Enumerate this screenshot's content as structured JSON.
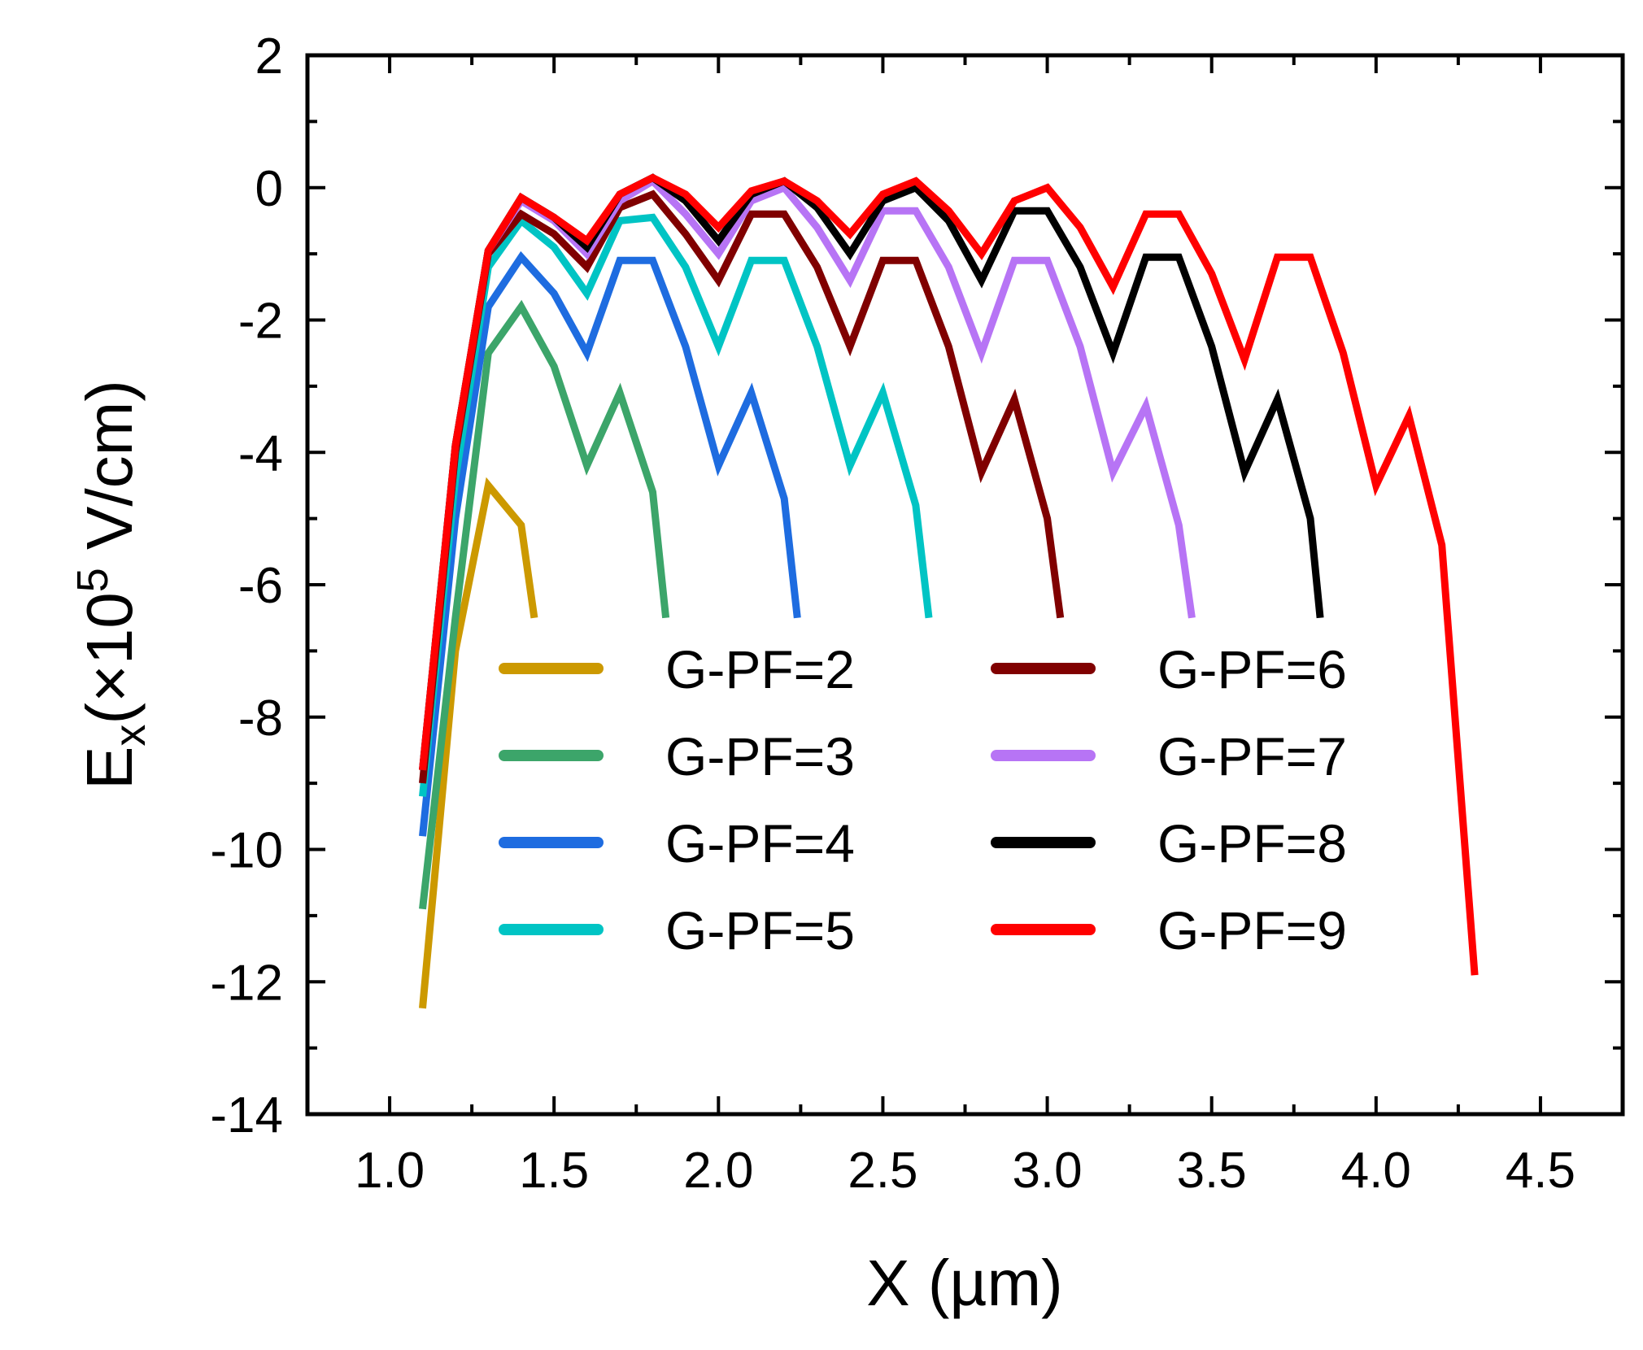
{
  "chart_data": {
    "type": "line",
    "title": "",
    "xlabel": "X (µm)",
    "ylabel": {
      "base": "E",
      "subscript": "x",
      "prefix": "(×10",
      "superscript": "5",
      "suffix": " V/cm)"
    },
    "xlim": [
      0.75,
      4.75
    ],
    "ylim": [
      -14,
      2
    ],
    "xticks": [
      1.0,
      1.5,
      2.0,
      2.5,
      3.0,
      3.5,
      4.0,
      4.5
    ],
    "xtick_labels": [
      "1.0",
      "1.5",
      "2.0",
      "2.5",
      "3.0",
      "3.5",
      "4.0",
      "4.5"
    ],
    "yticks": [
      -14,
      -12,
      -10,
      -8,
      -6,
      -4,
      -2,
      0,
      2
    ],
    "ytick_labels": [
      "-14",
      "-12",
      "-10",
      "-8",
      "-6",
      "-4",
      "-2",
      "0",
      "2"
    ],
    "legend_position": "lower-center, two columns",
    "series": [
      {
        "name": "G-PF=2",
        "color": "#CC9900",
        "x": [
          1.1,
          1.2,
          1.3,
          1.4,
          1.44
        ],
        "y": [
          -12.4,
          -7.0,
          -4.5,
          -5.1,
          -6.5
        ]
      },
      {
        "name": "G-PF=3",
        "color": "#3CA56A",
        "x": [
          1.1,
          1.2,
          1.3,
          1.4,
          1.5,
          1.6,
          1.7,
          1.8,
          1.84
        ],
        "y": [
          -10.9,
          -6.5,
          -2.5,
          -1.8,
          -2.7,
          -4.2,
          -3.1,
          -4.6,
          -6.5
        ]
      },
      {
        "name": "G-PF=4",
        "color": "#1E6CE0",
        "x": [
          1.1,
          1.2,
          1.3,
          1.4,
          1.5,
          1.6,
          1.7,
          1.8,
          1.9,
          2.0,
          2.1,
          2.2,
          2.24
        ],
        "y": [
          -9.8,
          -5.0,
          -1.8,
          -1.05,
          -1.6,
          -2.5,
          -1.1,
          -1.1,
          -2.4,
          -4.2,
          -3.1,
          -4.7,
          -6.5
        ]
      },
      {
        "name": "G-PF=5",
        "color": "#00C4C4",
        "x": [
          1.1,
          1.2,
          1.3,
          1.4,
          1.5,
          1.6,
          1.7,
          1.8,
          1.9,
          2.0,
          2.1,
          2.2,
          2.3,
          2.4,
          2.5,
          2.6,
          2.64
        ],
        "y": [
          -9.2,
          -4.4,
          -1.2,
          -0.5,
          -0.9,
          -1.6,
          -0.5,
          -0.45,
          -1.2,
          -2.4,
          -1.1,
          -1.1,
          -2.4,
          -4.2,
          -3.1,
          -4.8,
          -6.5
        ]
      },
      {
        "name": "G-PF=6",
        "color": "#800000",
        "x": [
          1.1,
          1.2,
          1.3,
          1.4,
          1.5,
          1.6,
          1.7,
          1.8,
          1.9,
          2.0,
          2.1,
          2.2,
          2.3,
          2.4,
          2.5,
          2.6,
          2.7,
          2.8,
          2.9,
          3.0,
          3.04
        ],
        "y": [
          -9.0,
          -4.0,
          -1.0,
          -0.4,
          -0.7,
          -1.2,
          -0.3,
          -0.1,
          -0.7,
          -1.4,
          -0.4,
          -0.4,
          -1.2,
          -2.4,
          -1.1,
          -1.1,
          -2.4,
          -4.3,
          -3.2,
          -5.0,
          -6.5
        ]
      },
      {
        "name": "G-PF=7",
        "color": "#B774F5",
        "x": [
          1.1,
          1.2,
          1.3,
          1.4,
          1.5,
          1.6,
          1.7,
          1.8,
          1.9,
          2.0,
          2.1,
          2.2,
          2.3,
          2.4,
          2.5,
          2.6,
          2.7,
          2.8,
          2.9,
          3.0,
          3.1,
          3.2,
          3.3,
          3.4,
          3.44
        ],
        "y": [
          -8.8,
          -3.9,
          -0.95,
          -0.2,
          -0.5,
          -1.0,
          -0.2,
          0.1,
          -0.4,
          -1.0,
          -0.2,
          0.0,
          -0.6,
          -1.4,
          -0.35,
          -0.35,
          -1.2,
          -2.5,
          -1.1,
          -1.1,
          -2.4,
          -4.3,
          -3.3,
          -5.1,
          -6.5
        ]
      },
      {
        "name": "G-PF=8",
        "color": "#000000",
        "x": [
          1.1,
          1.2,
          1.3,
          1.4,
          1.5,
          1.6,
          1.7,
          1.8,
          1.9,
          2.0,
          2.1,
          2.2,
          2.3,
          2.4,
          2.5,
          2.6,
          2.7,
          2.8,
          2.9,
          3.0,
          3.1,
          3.2,
          3.3,
          3.4,
          3.5,
          3.6,
          3.7,
          3.8,
          3.83
        ],
        "y": [
          -8.8,
          -3.9,
          -0.95,
          -0.15,
          -0.45,
          -0.9,
          -0.1,
          0.15,
          -0.2,
          -0.8,
          -0.1,
          0.1,
          -0.3,
          -1.0,
          -0.2,
          0.0,
          -0.5,
          -1.4,
          -0.35,
          -0.35,
          -1.2,
          -2.5,
          -1.05,
          -1.05,
          -2.4,
          -4.3,
          -3.2,
          -5.0,
          -6.5
        ]
      },
      {
        "name": "G-PF=9",
        "color": "#FF0000",
        "x": [
          1.1,
          1.2,
          1.3,
          1.4,
          1.5,
          1.6,
          1.7,
          1.8,
          1.9,
          2.0,
          2.1,
          2.2,
          2.3,
          2.4,
          2.5,
          2.6,
          2.7,
          2.8,
          2.9,
          3.0,
          3.1,
          3.2,
          3.3,
          3.4,
          3.5,
          3.6,
          3.7,
          3.8,
          3.9,
          4.0,
          4.1,
          4.2,
          4.3
        ],
        "y": [
          -8.8,
          -3.9,
          -0.95,
          -0.15,
          -0.45,
          -0.8,
          -0.1,
          0.15,
          -0.1,
          -0.6,
          -0.05,
          0.1,
          -0.2,
          -0.7,
          -0.1,
          0.1,
          -0.35,
          -1.0,
          -0.2,
          0.0,
          -0.6,
          -1.5,
          -0.4,
          -0.4,
          -1.3,
          -2.6,
          -1.05,
          -1.05,
          -2.5,
          -4.5,
          -3.45,
          -5.4,
          -11.9
        ]
      }
    ]
  }
}
